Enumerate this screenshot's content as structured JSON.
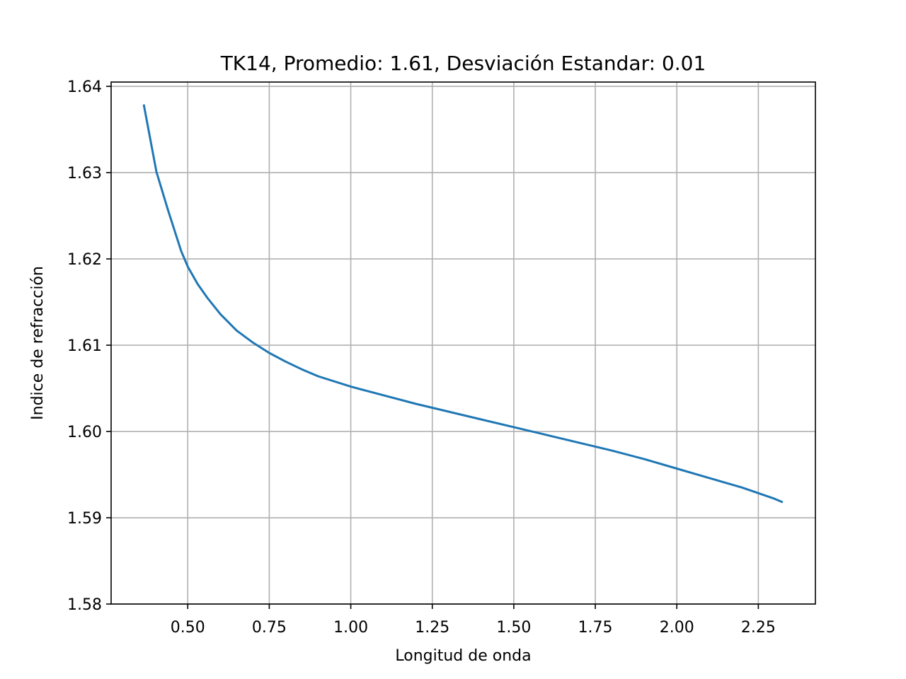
{
  "chart_data": {
    "type": "line",
    "title": "TK14, Promedio: 1.61, Desviación Estandar: 0.01",
    "xlabel": "Longitud de onda",
    "ylabel": "Indice de refracción",
    "xlim": [
      0.265,
      2.425
    ],
    "ylim": [
      1.58,
      1.6405
    ],
    "grid": true,
    "legend": "none",
    "xticks": [
      0.5,
      0.75,
      1.0,
      1.25,
      1.5,
      1.75,
      2.0,
      2.25
    ],
    "xtick_labels": [
      "0.50",
      "0.75",
      "1.00",
      "1.25",
      "1.50",
      "1.75",
      "2.00",
      "2.25"
    ],
    "yticks": [
      1.58,
      1.59,
      1.6,
      1.61,
      1.62,
      1.63,
      1.64
    ],
    "ytick_labels": [
      "1.58",
      "1.59",
      "1.60",
      "1.61",
      "1.62",
      "1.63",
      "1.64"
    ],
    "colors": {
      "line": "#1f77b4",
      "grid": "#b0b0b0"
    },
    "series": [
      {
        "x": [
          0.365,
          0.404,
          0.44,
          0.48,
          0.5,
          0.53,
          0.56,
          0.6,
          0.65,
          0.7,
          0.75,
          0.8,
          0.85,
          0.9,
          1.0,
          1.1,
          1.2,
          1.3,
          1.4,
          1.5,
          1.6,
          1.7,
          1.8,
          1.9,
          2.0,
          2.1,
          2.2,
          2.3,
          2.325
        ],
        "y": [
          1.6379,
          1.6301,
          1.6256,
          1.6209,
          1.6191,
          1.6171,
          1.6155,
          1.6136,
          1.6117,
          1.6103,
          1.6091,
          1.6081,
          1.6072,
          1.6064,
          1.6052,
          1.6042,
          1.6032,
          1.6023,
          1.6014,
          1.6005,
          1.5996,
          1.5987,
          1.5978,
          1.5968,
          1.5957,
          1.5946,
          1.5935,
          1.5922,
          1.5918
        ]
      }
    ]
  }
}
